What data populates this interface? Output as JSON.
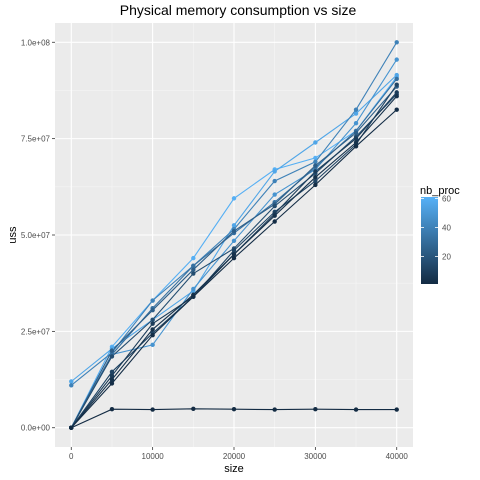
{
  "chart_data": {
    "type": "line",
    "title": "Physical memory consumption vs size",
    "xlabel": "size",
    "ylabel": "uss",
    "xlim": [
      -2000,
      42000
    ],
    "ylim": [
      -5000000,
      105000000
    ],
    "x_ticks": [
      0,
      10000,
      20000,
      30000,
      40000
    ],
    "x_tick_labels": [
      "0",
      "10000",
      "20000",
      "30000",
      "40000"
    ],
    "y_ticks": [
      0,
      25000000,
      50000000,
      75000000,
      100000000
    ],
    "y_tick_labels": [
      "0.0e+00",
      "2.5e+07",
      "5.0e+07",
      "7.5e+07",
      "1.0e+08"
    ],
    "grid": true,
    "background": "#EBEBEB",
    "x": [
      0,
      5000,
      10000,
      15000,
      20000,
      25000,
      30000,
      35000,
      40000
    ],
    "legend": {
      "title": "nb_proc",
      "placement": "right",
      "range": [
        1,
        61
      ],
      "ticks": [
        20,
        40,
        60
      ],
      "low_color": "#132B43",
      "high_color": "#56B1F7"
    },
    "series": [
      {
        "nb_proc": 1,
        "values": [
          0,
          4800000,
          4700000,
          4900000,
          4800000,
          4700000,
          4800000,
          4700000,
          4700000
        ]
      },
      {
        "nb_proc": 2,
        "values": [
          0,
          11500000,
          24000000,
          34000000,
          44000000,
          53500000,
          63000000,
          73000000,
          82500000
        ]
      },
      {
        "nb_proc": 4,
        "values": [
          0,
          12500000,
          25500000,
          34500000,
          45000000,
          55000000,
          65000000,
          74000000,
          86000000
        ]
      },
      {
        "nb_proc": 8,
        "values": [
          0,
          13500000,
          27000000,
          34000000,
          45000000,
          55500000,
          66500000,
          75000000,
          87000000
        ]
      },
      {
        "nb_proc": 12,
        "values": [
          0,
          14500000,
          24500000,
          34000000,
          46000000,
          56000000,
          64000000,
          73500000,
          89000000
        ]
      },
      {
        "nb_proc": 16,
        "values": [
          0,
          18500000,
          28000000,
          40000000,
          46500000,
          57500000,
          66000000,
          75500000,
          86500000
        ]
      },
      {
        "nb_proc": 24,
        "values": [
          0,
          20000000,
          30500000,
          41000000,
          51000000,
          58000000,
          68000000,
          76500000,
          88500000
        ]
      },
      {
        "nb_proc": 32,
        "values": [
          0,
          19000000,
          31000000,
          42000000,
          50500000,
          58500000,
          67500000,
          77000000,
          90500000
        ]
      },
      {
        "nb_proc": 40,
        "values": [
          11000000,
          19500000,
          33000000,
          42000000,
          51500000,
          64000000,
          69000000,
          82500000,
          100000000
        ]
      },
      {
        "nb_proc": 48,
        "values": [
          0,
          19000000,
          21500000,
          36000000,
          48500000,
          60500000,
          67000000,
          79000000,
          95500000
        ]
      },
      {
        "nb_proc": 56,
        "values": [
          12000000,
          20500000,
          28000000,
          35500000,
          52500000,
          66500000,
          74000000,
          81500000,
          91500000
        ]
      },
      {
        "nb_proc": 60,
        "values": [
          0,
          21000000,
          33000000,
          44000000,
          59500000,
          67000000,
          70000000,
          77000000,
          91000000
        ]
      }
    ]
  }
}
